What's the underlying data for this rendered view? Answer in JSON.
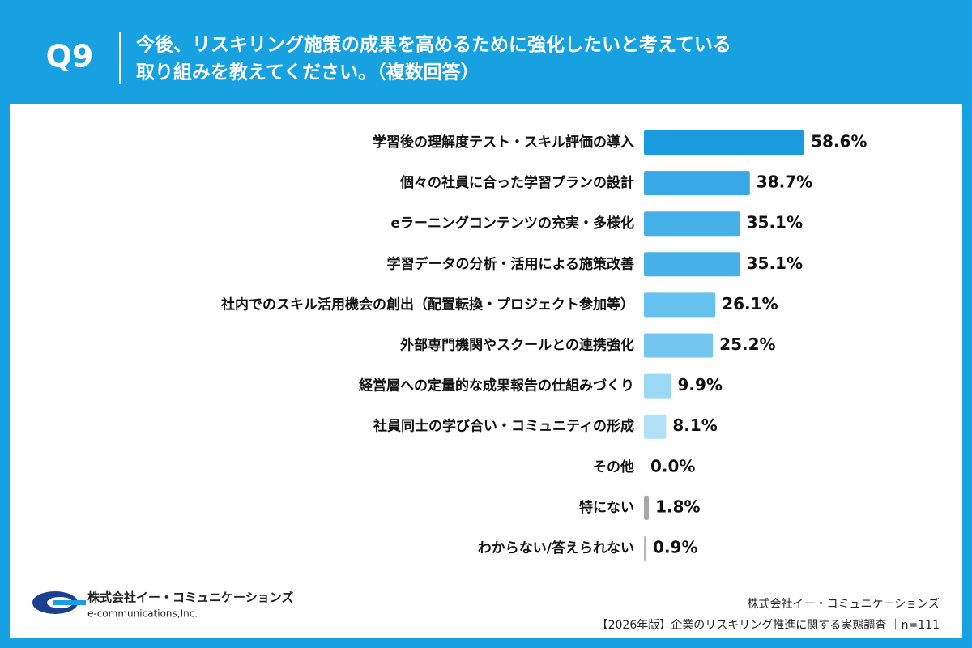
{
  "question_label": "Q9",
  "chart_data": {
    "type": "bar",
    "orientation": "horizontal",
    "title": [
      "今後、リスキリング施策の成果を高めるために強化したいと考えている",
      "取り組みを教えてください。（複数回答）"
    ],
    "categories": [
      "学習後の理解度テスト・スキル評価の導入",
      "個々の社員に合った学習プランの設計",
      "eラーニングコンテンツの充実・多様化",
      "学習データの分析・活用による施策改善",
      "社内でのスキル活用機会の創出（配置転換・プロジェクト参加等）",
      "外部専門機関やスクールとの連携強化",
      "経営層への定量的な成果報告の仕組みづくり",
      "社員同士の学び合い・コミュニティの形成",
      "その他",
      "特にない",
      "わからない/答えられない"
    ],
    "values": [
      58.6,
      38.7,
      35.1,
      35.1,
      26.1,
      25.2,
      9.9,
      8.1,
      0.0,
      1.8,
      0.9
    ],
    "value_labels": [
      "58.6%",
      "38.7%",
      "35.1%",
      "35.1%",
      "26.1%",
      "25.2%",
      "9.9%",
      "8.1%",
      "0.0%",
      "1.8%",
      "0.9%"
    ],
    "colors": [
      "#1a9be0",
      "#38a9e6",
      "#46b0e9",
      "#46b0e9",
      "#67c1ee",
      "#73c6ef",
      "#9bd8f4",
      "#b0e1f6",
      "#b0e1f6",
      "#a9a9a9",
      "#b5b5b5"
    ]
  },
  "logo": {
    "name": "株式会社イー・コミュニケーションズ",
    "english": "e-communications,Inc."
  },
  "footer": {
    "company": "株式会社イー・コミュニケーションズ",
    "survey": "【2026年版】企業のリスキリング推進に関する実態調査 ｜n=111"
  }
}
